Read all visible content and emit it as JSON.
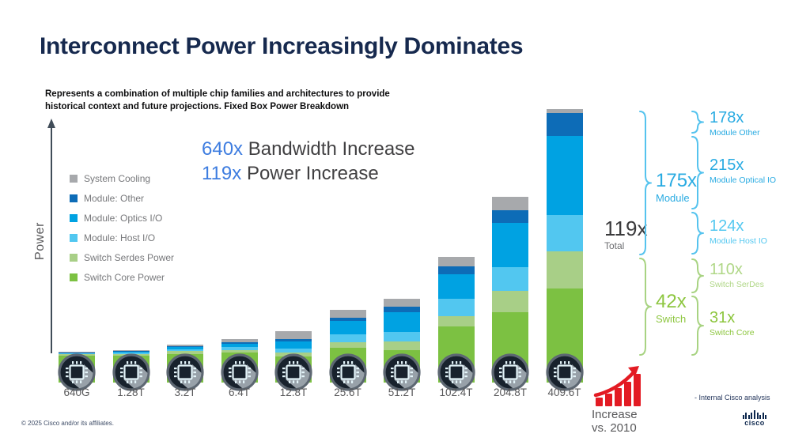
{
  "slide": {
    "title": "Interconnect Power Increasingly Dominates",
    "subtitle_line1": "Represents a combination of multiple chip families and architectures to provide",
    "subtitle_line2": "historical context and future projections. Fixed Box Power Breakdown",
    "copyright": "© 2025 Cisco and/or its affiliates.",
    "source_note": "- Internal Cisco analysis",
    "logo_text": "cisco"
  },
  "annotation": {
    "line1_value": "640x",
    "line1_text": "Bandwidth Increase",
    "line2_value": "119x",
    "line2_text": "Power Increase"
  },
  "legend": {
    "position": "left-middle",
    "items": [
      {
        "label": "System Cooling",
        "color": "#a7a9ac"
      },
      {
        "label": "Module: Other",
        "color": "#0d6cb7"
      },
      {
        "label": "Module: Optics I/O",
        "color": "#00a2e2"
      },
      {
        "label": "Module: Host I/O",
        "color": "#52c7f0"
      },
      {
        "label": "Switch Serdes Power",
        "color": "#a8cf87"
      },
      {
        "label": "Switch Core Power",
        "color": "#7cc142"
      }
    ]
  },
  "multipliers": {
    "total": {
      "value": "119x",
      "label": "Total",
      "color": "#3a3a3c"
    },
    "module": {
      "value": "175x",
      "label": "Module",
      "color": "#29abe2"
    },
    "switch": {
      "value": "42x",
      "label": "Switch",
      "color": "#8dc63f"
    },
    "module_other": {
      "value": "178x",
      "label": "Module Other",
      "color": "#29abe2"
    },
    "module_optical": {
      "value": "215x",
      "label": "Module Optical IO",
      "color": "#29abe2"
    },
    "module_host": {
      "value": "124x",
      "label": "Module Host IO",
      "color": "#55c8f0"
    },
    "switch_serdes": {
      "value": "110x",
      "label": "Switch SerDes",
      "color": "#b0d787"
    },
    "switch_core": {
      "value": "31x",
      "label": "Switch Core",
      "color": "#8dc63f"
    }
  },
  "increase_icon": {
    "line1": "Increase",
    "line2": "vs. 2010"
  },
  "colors": {
    "brace_blue": "#55c3ee",
    "brace_green": "#a8d382",
    "axis": "#414d59",
    "title_navy": "#16294e",
    "increase_red": "#e31b23"
  },
  "chart_data": {
    "type": "bar",
    "stacked": true,
    "title": "Fixed Box Power Breakdown",
    "ylabel": "Power",
    "xlabel": "",
    "grid": false,
    "legend_position": "left-middle",
    "y_axis_note": "unlabeled relative power axis; values below are relative stacked heights estimated from pixels",
    "categories": [
      "640G",
      "1.28T",
      "3.2T",
      "6.4T",
      "12.8T",
      "25.6T",
      "51.2T",
      "102.4T",
      "204.8T",
      "409.6T"
    ],
    "series": [
      {
        "name": "Switch Core Power",
        "color": "#7cc142",
        "values": [
          34,
          34,
          36,
          38,
          33,
          44,
          41,
          71,
          89,
          119
        ]
      },
      {
        "name": "Switch Serdes Power",
        "color": "#a8cf87",
        "values": [
          2,
          2.5,
          4,
          3.5,
          5,
          7,
          11,
          13,
          27,
          47
        ]
      },
      {
        "name": "Module: Host I/O",
        "color": "#52c7f0",
        "values": [
          1,
          1.5,
          2,
          3.5,
          5,
          10,
          12,
          22,
          30,
          46
        ]
      },
      {
        "name": "Module: Optics I/O",
        "color": "#00a2e2",
        "values": [
          1,
          1.5,
          3,
          4,
          9,
          17,
          25,
          31,
          56,
          100
        ]
      },
      {
        "name": "Module: Other",
        "color": "#0d6cb7",
        "values": [
          0.5,
          0.75,
          1.5,
          2,
          3,
          4,
          7,
          10,
          16,
          29
        ]
      },
      {
        "name": "System Cooling",
        "color": "#a7a9ac",
        "values": [
          0.5,
          0.75,
          1.5,
          4,
          10,
          10,
          10,
          12,
          17,
          5
        ]
      }
    ]
  }
}
